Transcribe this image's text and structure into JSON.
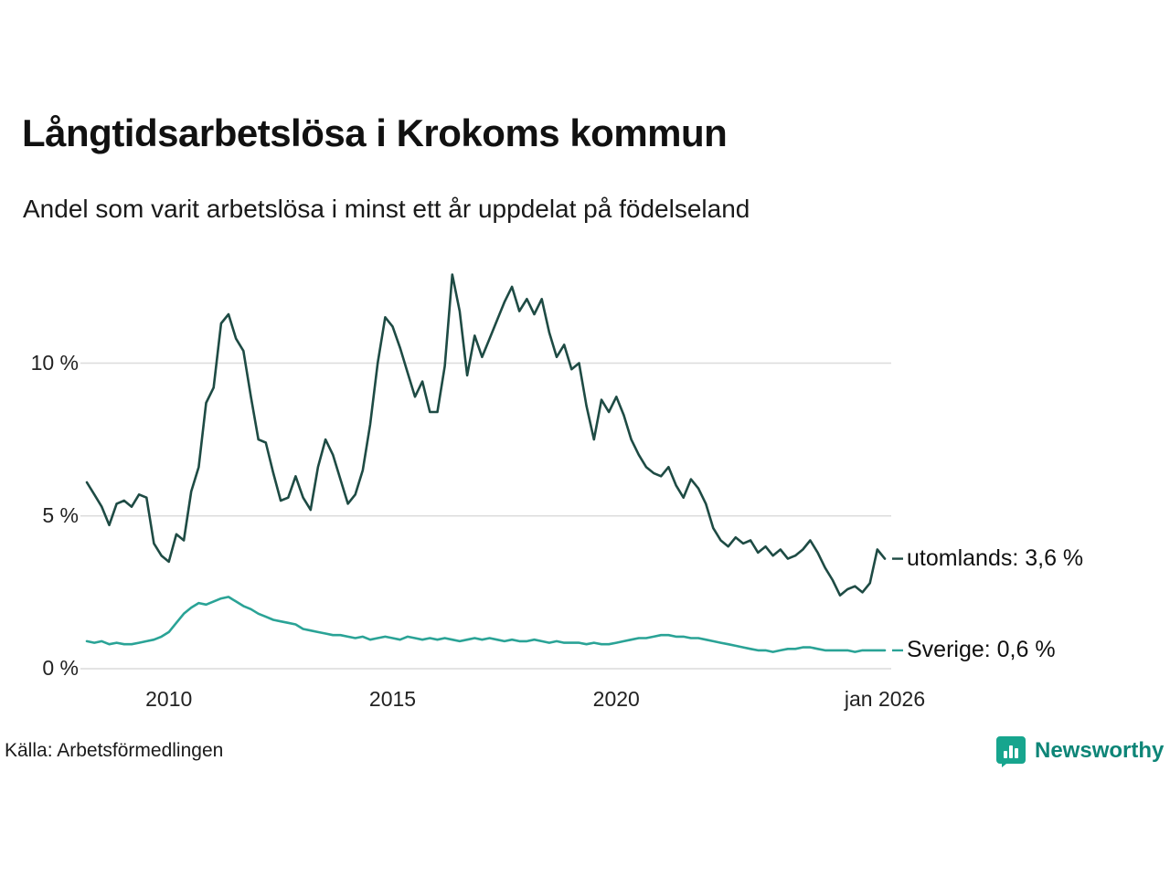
{
  "title": "Långtidsarbetslösa i Krokoms kommun",
  "subtitle": "Andel som varit arbetslösa i minst ett år uppdelat på födelseland",
  "source": "Källa: Arbetsförmedlingen",
  "brand": {
    "name": "Newsworthy",
    "icon": "newsworthy-chart-pin-icon",
    "icon_color": "#17a58e",
    "text_color": "#0d8577"
  },
  "colors": {
    "grid": "#dcdcdc",
    "axis_text": "#222222",
    "title_text": "#111111"
  },
  "chart_data": {
    "type": "line",
    "title": "Långtidsarbetslösa i Krokoms kommun",
    "subtitle": "Andel som varit arbetslösa i minst ett år uppdelat på födelseland",
    "xlabel": "",
    "ylabel": "",
    "grid": true,
    "ylim": [
      0,
      13.5
    ],
    "x_domain": [
      2008.1667,
      2026.0
    ],
    "x_ticks": [
      {
        "year": 2010,
        "label": "2010"
      },
      {
        "year": 2015,
        "label": "2015"
      },
      {
        "year": 2020,
        "label": "2020"
      },
      {
        "year": 2026,
        "label": "jan 2026"
      }
    ],
    "y_ticks": [
      {
        "value": 0,
        "label": "0 %"
      },
      {
        "value": 5,
        "label": "5 %"
      },
      {
        "value": 10,
        "label": "10 %"
      }
    ],
    "series": [
      {
        "name": "utomlands",
        "color": "#1e4b44",
        "end_label": "utomlands: 3,6 %",
        "last_value": "3,6 %",
        "values": [
          6.1,
          5.7,
          5.3,
          4.7,
          5.4,
          5.5,
          5.3,
          5.7,
          5.6,
          4.1,
          3.7,
          3.5,
          4.4,
          4.2,
          5.8,
          6.6,
          8.7,
          9.2,
          11.3,
          11.6,
          10.8,
          10.4,
          8.9,
          7.5,
          7.4,
          6.4,
          5.5,
          5.6,
          6.3,
          5.6,
          5.2,
          6.6,
          7.5,
          7.0,
          6.2,
          5.4,
          5.7,
          6.5,
          8.0,
          10.0,
          11.5,
          11.2,
          10.5,
          9.7,
          8.9,
          9.4,
          8.4,
          8.4,
          9.9,
          12.9,
          11.7,
          9.6,
          10.9,
          10.2,
          10.8,
          11.4,
          12.0,
          12.5,
          11.7,
          12.1,
          11.6,
          12.1,
          11.0,
          10.2,
          10.6,
          9.8,
          10.0,
          8.6,
          7.5,
          8.8,
          8.4,
          8.9,
          8.3,
          7.5,
          7.0,
          6.6,
          6.4,
          6.3,
          6.6,
          6.0,
          5.6,
          6.2,
          5.9,
          5.4,
          4.6,
          4.2,
          4.0,
          4.3,
          4.1,
          4.2,
          3.8,
          4.0,
          3.7,
          3.9,
          3.6,
          3.7,
          3.9,
          4.2,
          3.8,
          3.3,
          2.9,
          2.4,
          2.6,
          2.7,
          2.5,
          2.8,
          3.9,
          3.6
        ]
      },
      {
        "name": "Sverige",
        "color": "#2aa396",
        "end_label": "Sverige: 0,6 %",
        "last_value": "0,6 %",
        "values": [
          0.9,
          0.85,
          0.9,
          0.8,
          0.85,
          0.8,
          0.8,
          0.85,
          0.9,
          0.95,
          1.05,
          1.2,
          1.5,
          1.8,
          2.0,
          2.15,
          2.1,
          2.2,
          2.3,
          2.35,
          2.2,
          2.05,
          1.95,
          1.8,
          1.7,
          1.6,
          1.55,
          1.5,
          1.45,
          1.3,
          1.25,
          1.2,
          1.15,
          1.1,
          1.1,
          1.05,
          1.0,
          1.05,
          0.95,
          1.0,
          1.05,
          1.0,
          0.95,
          1.05,
          1.0,
          0.95,
          1.0,
          0.95,
          1.0,
          0.95,
          0.9,
          0.95,
          1.0,
          0.95,
          1.0,
          0.95,
          0.9,
          0.95,
          0.9,
          0.9,
          0.95,
          0.9,
          0.85,
          0.9,
          0.85,
          0.85,
          0.85,
          0.8,
          0.85,
          0.8,
          0.8,
          0.85,
          0.9,
          0.95,
          1.0,
          1.0,
          1.05,
          1.1,
          1.1,
          1.05,
          1.05,
          1.0,
          1.0,
          0.95,
          0.9,
          0.85,
          0.8,
          0.75,
          0.7,
          0.65,
          0.6,
          0.6,
          0.55,
          0.6,
          0.65,
          0.65,
          0.7,
          0.7,
          0.65,
          0.6,
          0.6,
          0.6,
          0.6,
          0.55,
          0.6,
          0.6,
          0.6,
          0.6
        ]
      }
    ]
  }
}
